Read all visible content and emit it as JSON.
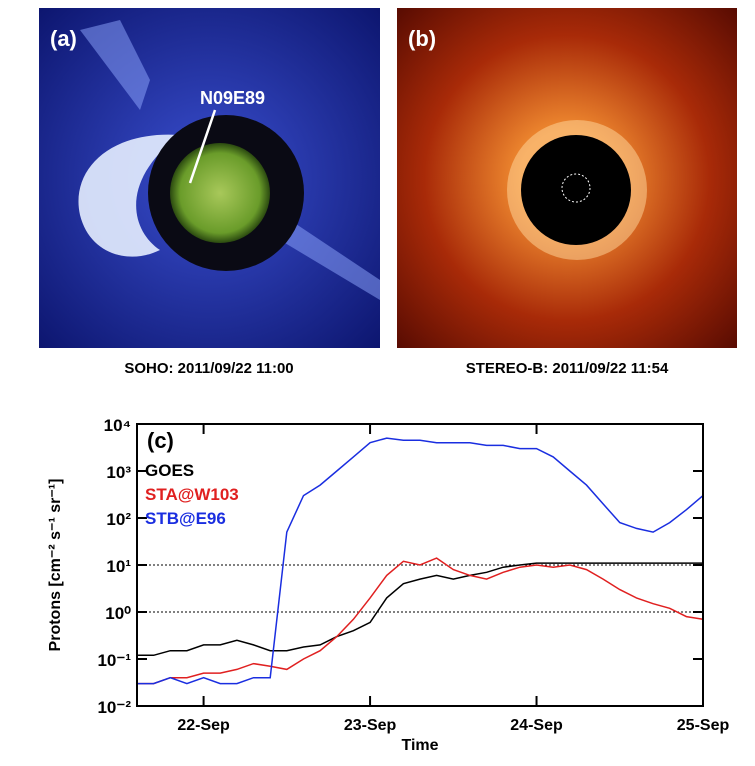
{
  "images": [
    {
      "label": "(a)",
      "annotation": "N09E89",
      "caption": "SOHO: 2011/09/22 11:00"
    },
    {
      "label": "(b)",
      "caption": "STEREO-B: 2011/09/22 11:54"
    }
  ],
  "chart_data": {
    "type": "line",
    "panel_label": "(c)",
    "x_label": "Time",
    "y_label": "Protons [cm⁻² s⁻¹ sr⁻¹]",
    "log_y": true,
    "xlim": [
      21.6,
      25.0
    ],
    "xticks": [
      {
        "value": 22,
        "label": "22-Sep"
      },
      {
        "value": 23,
        "label": "23-Sep"
      },
      {
        "value": 24,
        "label": "24-Sep"
      },
      {
        "value": 25,
        "label": "25-Sep"
      }
    ],
    "ylim": [
      0.01,
      10000
    ],
    "yticks": [
      {
        "value": 0.01,
        "label": "10⁻²"
      },
      {
        "value": 0.1,
        "label": "10⁻¹"
      },
      {
        "value": 1,
        "label": "10⁰"
      },
      {
        "value": 10,
        "label": "10¹"
      },
      {
        "value": 100,
        "label": "10²"
      },
      {
        "value": 1000,
        "label": "10³"
      },
      {
        "value": 10000,
        "label": "10⁴"
      }
    ],
    "hlines": [
      1,
      10
    ],
    "x": [
      21.6,
      21.7,
      21.8,
      21.9,
      22.0,
      22.1,
      22.2,
      22.3,
      22.4,
      22.5,
      22.6,
      22.7,
      22.8,
      22.9,
      23.0,
      23.1,
      23.2,
      23.3,
      23.4,
      23.5,
      23.6,
      23.7,
      23.8,
      23.9,
      24.0,
      24.1,
      24.2,
      24.3,
      24.4,
      24.5,
      24.6,
      24.7,
      24.8,
      24.9,
      25.0
    ],
    "series": [
      {
        "name": "GOES",
        "color": "#000000",
        "values": [
          0.12,
          0.12,
          0.15,
          0.15,
          0.2,
          0.2,
          0.25,
          0.2,
          0.15,
          0.15,
          0.18,
          0.2,
          0.3,
          0.4,
          0.6,
          2,
          4,
          5,
          6,
          5,
          6,
          7,
          9,
          10,
          11,
          11,
          11,
          11,
          11,
          11,
          11,
          11,
          11,
          11,
          11
        ]
      },
      {
        "name": "STA@W103",
        "color": "#e02020",
        "values": [
          0.03,
          0.03,
          0.04,
          0.04,
          0.05,
          0.05,
          0.06,
          0.08,
          0.07,
          0.06,
          0.1,
          0.15,
          0.3,
          0.7,
          2,
          6,
          12,
          10,
          14,
          8,
          6,
          5,
          7,
          9,
          10,
          9,
          10,
          8,
          5,
          3,
          2,
          1.5,
          1.2,
          0.8,
          0.7
        ]
      },
      {
        "name": "STB@E96",
        "color": "#1a2ee0",
        "values": [
          0.03,
          0.03,
          0.04,
          0.03,
          0.04,
          0.03,
          0.03,
          0.04,
          0.04,
          50,
          300,
          500,
          1000,
          2000,
          4000,
          5000,
          4500,
          4500,
          4000,
          4000,
          4000,
          3500,
          3500,
          3000,
          3000,
          2000,
          1000,
          500,
          200,
          80,
          60,
          50,
          80,
          150,
          300
        ]
      }
    ]
  }
}
